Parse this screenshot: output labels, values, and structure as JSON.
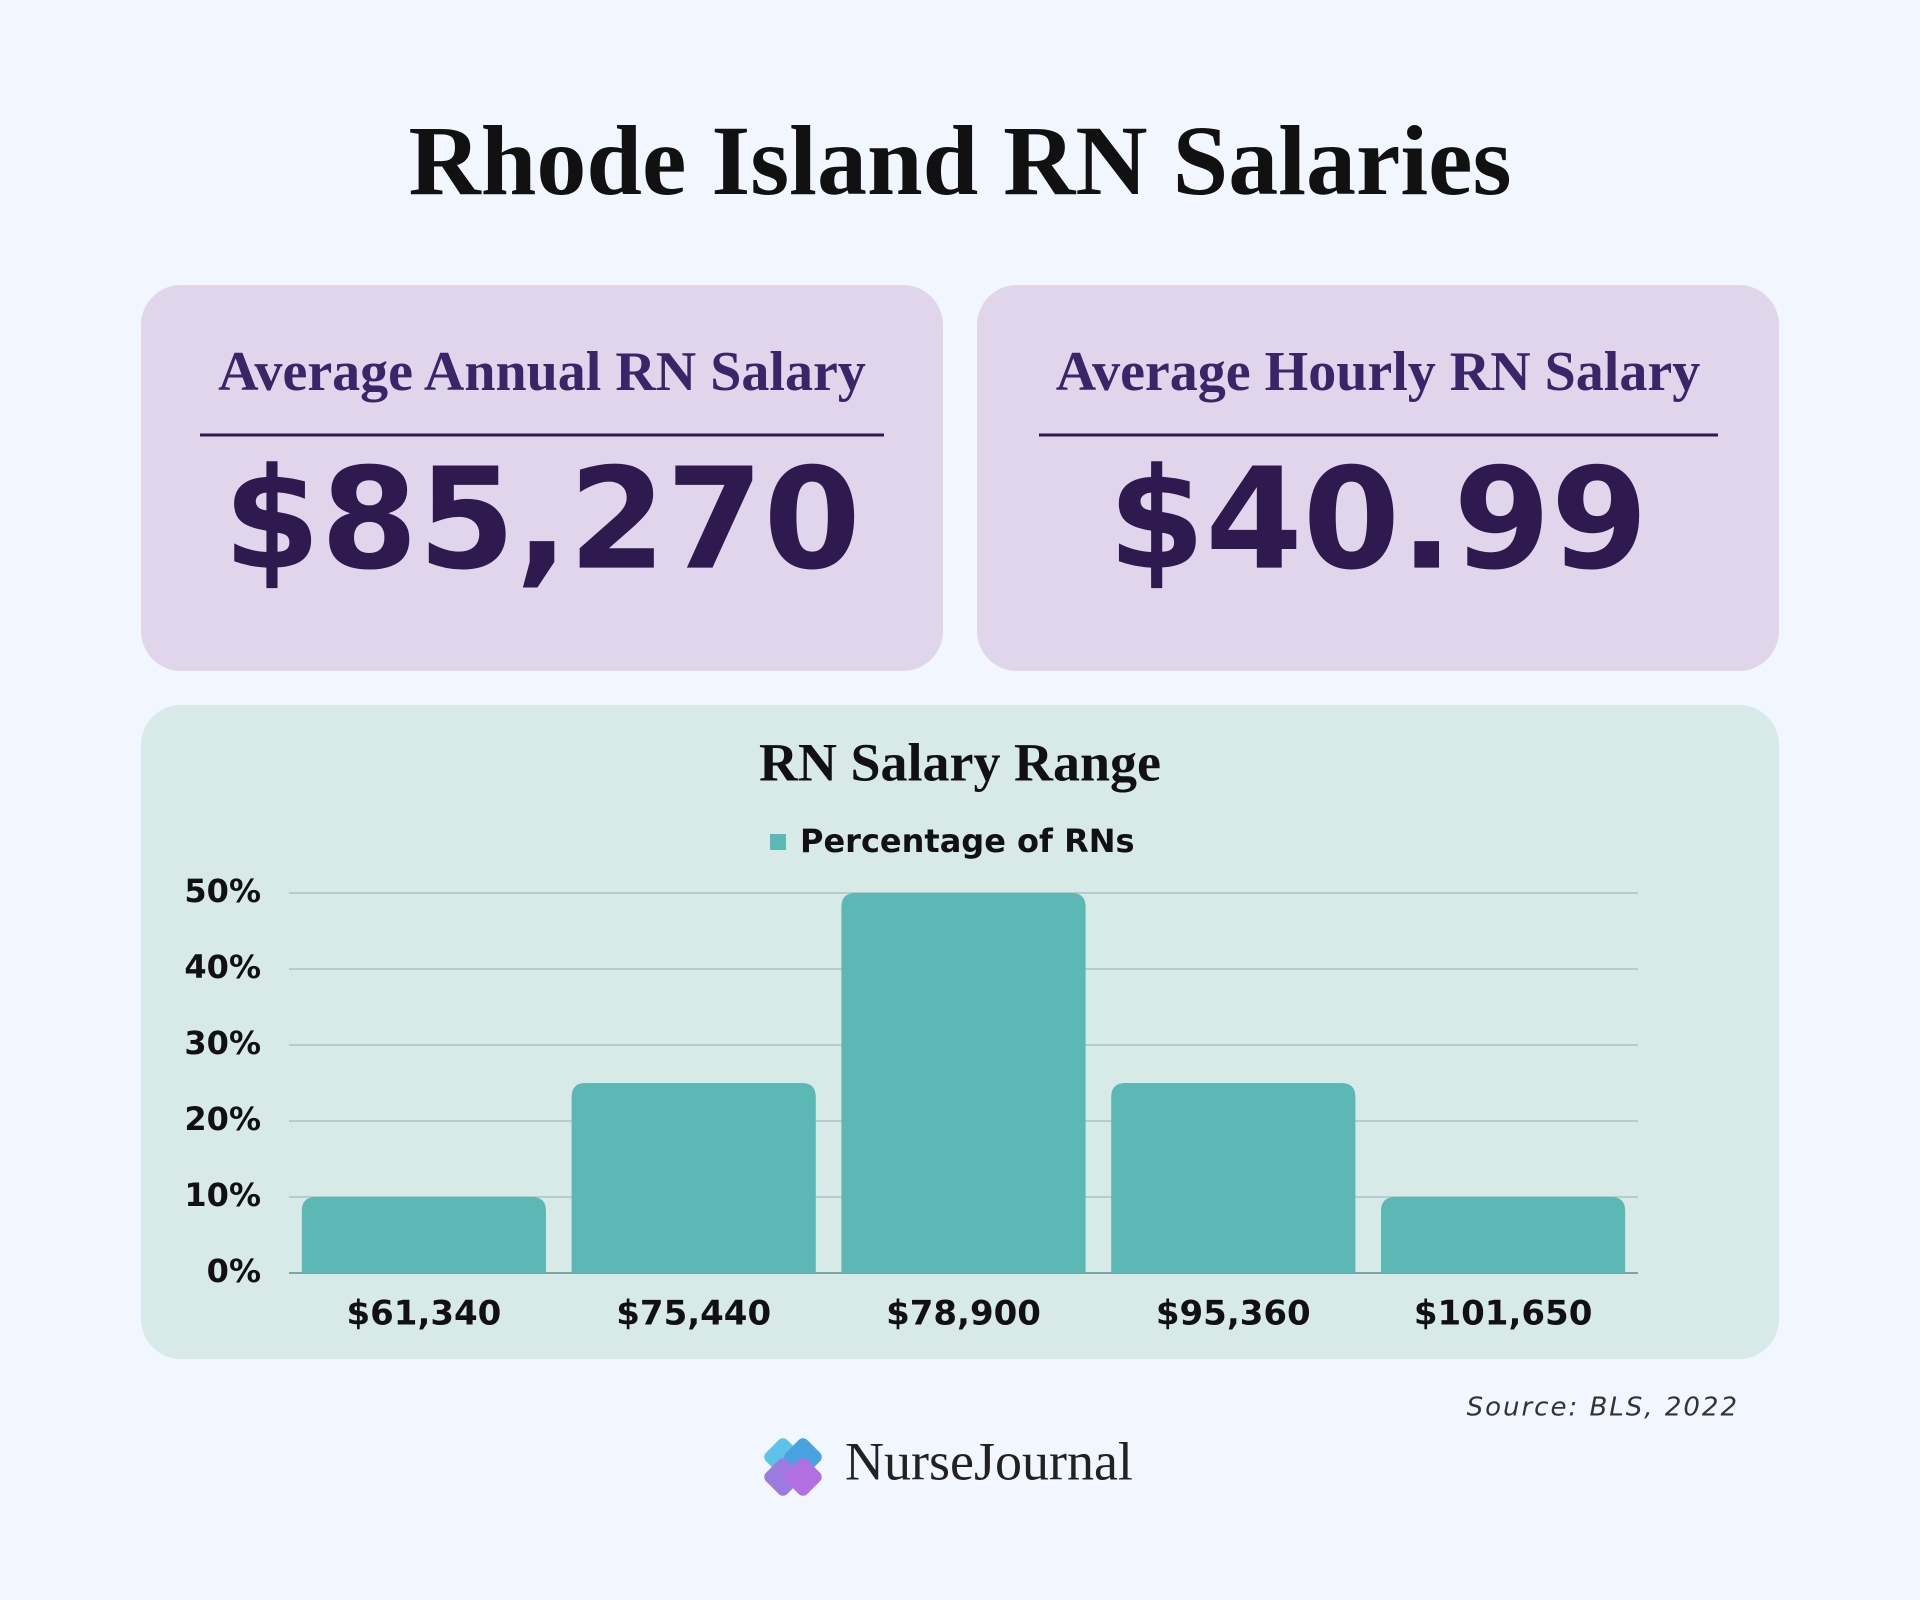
{
  "title": "Rhode Island RN Salaries",
  "cards": [
    {
      "label": "Average Annual RN Salary",
      "value": "$85,270"
    },
    {
      "label": "Average Hourly RN Salary",
      "value": "$40.99"
    }
  ],
  "chart_data": {
    "type": "bar",
    "title": "RN Salary Range",
    "categories": [
      "$61,340",
      "$75,440",
      "$78,900",
      "$95,360",
      "$101,650"
    ],
    "series": [
      {
        "name": "Percentage of RNs",
        "color": "#5bb8b4",
        "values": [
          10,
          25,
          50,
          25,
          10
        ]
      }
    ],
    "ylim": [
      0,
      50
    ],
    "yticks": [
      {
        "value": 0,
        "label": "0%"
      },
      {
        "value": 10,
        "label": "10%"
      },
      {
        "value": 20,
        "label": "20%"
      },
      {
        "value": 30,
        "label": "30%"
      },
      {
        "value": 40,
        "label": "40%"
      },
      {
        "value": 50,
        "label": "50%"
      }
    ],
    "grid": true,
    "legend": "top"
  },
  "source": "Source: BLS, 2022",
  "brand": "NurseJournal"
}
